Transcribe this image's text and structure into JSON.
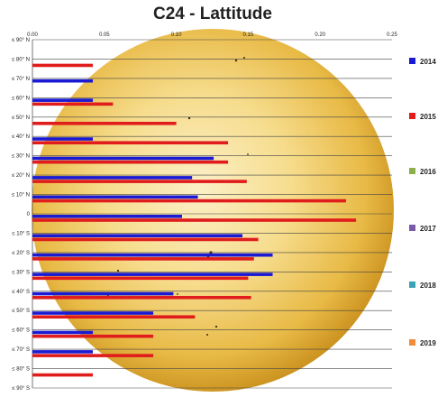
{
  "chart_data": {
    "type": "bar",
    "orientation": "horizontal",
    "title": "C24 - Lattitude",
    "xlabel": "",
    "ylabel": "",
    "xlim": [
      0,
      0.25
    ],
    "x_ticks": [
      "0.00",
      "0.05",
      "0.10",
      "0.15",
      "0.20",
      "0.25"
    ],
    "categories": [
      "≤ 90° N",
      "≤ 80° N",
      "≤ 70° N",
      "≤ 60° N",
      "≤ 50° N",
      "≤ 40° N",
      "≤ 30° N",
      "≤ 20° N",
      "≤ 10° N",
      "0",
      "≤ 10° S",
      "≤ 20° S",
      "≤ 30° S",
      "≤ 40° S",
      "≤ 50° S",
      "≤ 60° S",
      "≤ 70° S",
      "≤ 80° S",
      "≤ 90° S"
    ],
    "series": [
      {
        "name": "2014",
        "color": "#1a1ad4",
        "values": [
          0,
          0,
          0.042,
          0.042,
          0,
          0.042,
          0.126,
          0.111,
          0.115,
          0.104,
          0.146,
          0.167,
          0.167,
          0.098,
          0.084,
          0.042,
          0.042,
          0,
          0
        ]
      },
      {
        "name": "2015",
        "color": "#e01c1c",
        "values": [
          0,
          0.042,
          0,
          0.056,
          0.1,
          0.136,
          0.136,
          0.149,
          0.218,
          0.225,
          0.157,
          0.154,
          0.15,
          0.152,
          0.113,
          0.084,
          0.084,
          0.042,
          0
        ]
      },
      {
        "name": "2016",
        "color": "#8db04a",
        "values": [
          0,
          0,
          0,
          0,
          0,
          0,
          0,
          0,
          0,
          0,
          0,
          0,
          0,
          0,
          0,
          0,
          0,
          0,
          0
        ]
      },
      {
        "name": "2017",
        "color": "#7b5aa6",
        "values": [
          0,
          0,
          0,
          0,
          0,
          0,
          0,
          0,
          0,
          0,
          0,
          0,
          0,
          0,
          0,
          0,
          0,
          0,
          0
        ]
      },
      {
        "name": "2018",
        "color": "#3aa3b5",
        "values": [
          0,
          0,
          0,
          0,
          0,
          0,
          0,
          0,
          0,
          0,
          0,
          0,
          0,
          0,
          0,
          0,
          0,
          0,
          0
        ]
      },
      {
        "name": "2019",
        "color": "#f08c3c",
        "values": [
          0,
          0,
          0,
          0,
          0,
          0,
          0,
          0,
          0,
          0,
          0,
          0,
          0,
          0,
          0,
          0,
          0,
          0,
          0
        ]
      }
    ],
    "grid": true,
    "legend_position": "right",
    "background_image": "sun-disk"
  }
}
